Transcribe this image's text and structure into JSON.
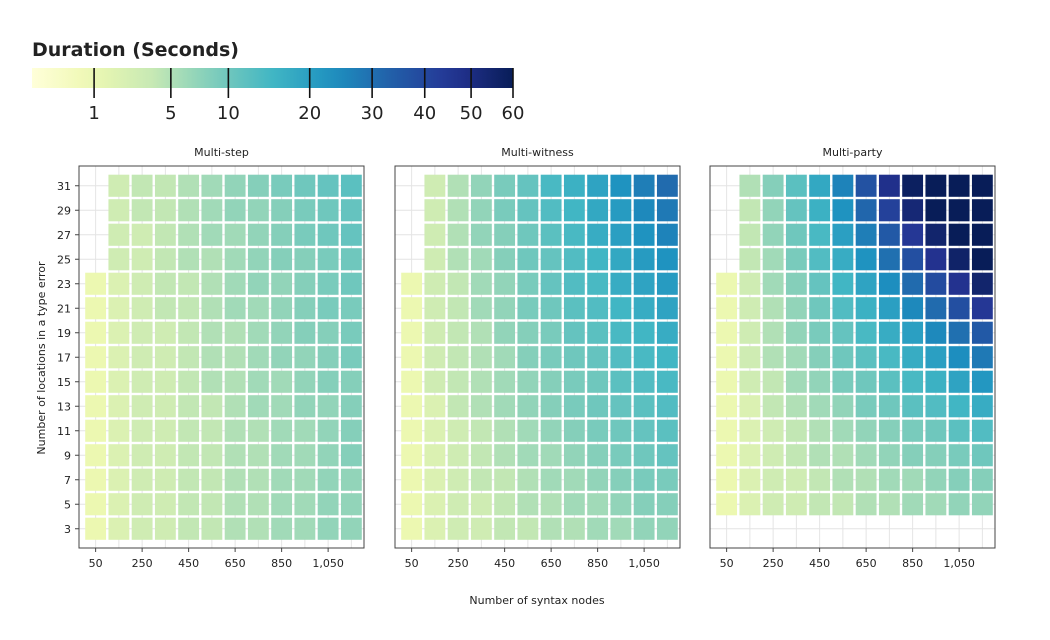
{
  "chart_data": {
    "type": "heatmap",
    "legend": {
      "title": "Duration (Seconds)",
      "ticks": [
        1,
        5,
        10,
        20,
        30,
        40,
        50,
        60
      ],
      "tick_labels": [
        "1",
        "5",
        "10",
        "20",
        "30",
        "40",
        "50",
        "60"
      ],
      "range": [
        0,
        60
      ],
      "palette": [
        "#ffffd9",
        "#edf8b1",
        "#c7e9b4",
        "#7fcdbb",
        "#41b6c4",
        "#1d91c0",
        "#225ea8",
        "#253494",
        "#081d58"
      ],
      "placement": "top-left"
    },
    "xlabel": "Number of syntax nodes",
    "ylabel": "Number of locations in a type error",
    "x_values": [
      50,
      150,
      250,
      350,
      450,
      550,
      650,
      750,
      850,
      950,
      1050,
      1150
    ],
    "x_ticks": [
      50,
      250,
      450,
      650,
      850,
      1050
    ],
    "x_tick_labels": [
      "50",
      "250",
      "450",
      "650",
      "850",
      "1,050"
    ],
    "y_values": [
      3,
      5,
      7,
      9,
      11,
      13,
      15,
      17,
      19,
      21,
      23,
      25,
      27,
      29,
      31
    ],
    "y_ticks": [
      3,
      5,
      7,
      9,
      11,
      13,
      15,
      17,
      19,
      21,
      23,
      25,
      27,
      29,
      31
    ],
    "y_tick_labels": [
      "3",
      "5",
      "7",
      "9",
      "11",
      "13",
      "15",
      "17",
      "19",
      "21",
      "23",
      "25",
      "27",
      "29",
      "31"
    ],
    "grid": true,
    "facets": [
      {
        "title": "Multi-step",
        "rows": [
          {
            "y": 3,
            "values": [
              1,
              2,
              3,
              3,
              4,
              4,
              5,
              5,
              6,
              6,
              7,
              7
            ]
          },
          {
            "y": 5,
            "values": [
              1,
              2,
              3,
              3,
              4,
              4,
              5,
              5,
              6,
              6,
              7,
              7
            ]
          },
          {
            "y": 7,
            "values": [
              1,
              2,
              3,
              3,
              4,
              4,
              5,
              5,
              6,
              6,
              7,
              7
            ]
          },
          {
            "y": 9,
            "values": [
              1,
              2,
              3,
              3,
              4,
              4,
              5,
              5,
              6,
              6,
              7,
              8
            ]
          },
          {
            "y": 11,
            "values": [
              1,
              2,
              3,
              3,
              4,
              4,
              5,
              5,
              6,
              6,
              7,
              8
            ]
          },
          {
            "y": 13,
            "values": [
              1,
              2,
              3,
              3,
              4,
              4,
              5,
              6,
              6,
              7,
              7,
              8
            ]
          },
          {
            "y": 15,
            "values": [
              1,
              2,
              3,
              3,
              4,
              5,
              5,
              6,
              6,
              7,
              8,
              8
            ]
          },
          {
            "y": 17,
            "values": [
              1,
              2,
              3,
              3,
              4,
              5,
              5,
              6,
              7,
              7,
              8,
              9
            ]
          },
          {
            "y": 19,
            "values": [
              1,
              2,
              3,
              3,
              4,
              5,
              5,
              6,
              7,
              8,
              8,
              9
            ]
          },
          {
            "y": 21,
            "values": [
              1,
              2,
              3,
              4,
              4,
              5,
              6,
              6,
              7,
              8,
              9,
              9
            ]
          },
          {
            "y": 23,
            "values": [
              1,
              2,
              3,
              4,
              4,
              5,
              6,
              7,
              7,
              8,
              9,
              10
            ]
          },
          {
            "y": 25,
            "values": [
              null,
              3,
              3,
              4,
              5,
              5,
              6,
              7,
              8,
              8,
              9,
              10
            ]
          },
          {
            "y": 27,
            "values": [
              null,
              3,
              3,
              4,
              5,
              6,
              6,
              7,
              8,
              9,
              10,
              11
            ]
          },
          {
            "y": 29,
            "values": [
              null,
              3,
              4,
              4,
              5,
              6,
              7,
              7,
              8,
              9,
              10,
              11
            ]
          },
          {
            "y": 31,
            "values": [
              null,
              3,
              4,
              4,
              5,
              6,
              7,
              8,
              9,
              10,
              11,
              12
            ]
          }
        ]
      },
      {
        "title": "Multi-witness",
        "rows": [
          {
            "y": 3,
            "values": [
              1,
              2,
              3,
              3,
              4,
              4,
              5,
              5,
              6,
              6,
              7,
              7
            ]
          },
          {
            "y": 5,
            "values": [
              1,
              2,
              3,
              3,
              4,
              5,
              5,
              6,
              6,
              7,
              8,
              8
            ]
          },
          {
            "y": 7,
            "values": [
              1,
              2,
              3,
              4,
              4,
              5,
              6,
              6,
              7,
              8,
              9,
              9
            ]
          },
          {
            "y": 9,
            "values": [
              1,
              2,
              3,
              4,
              5,
              6,
              6,
              7,
              8,
              9,
              10,
              11
            ]
          },
          {
            "y": 11,
            "values": [
              1,
              2,
              3,
              4,
              5,
              6,
              7,
              8,
              9,
              10,
              11,
              12
            ]
          },
          {
            "y": 13,
            "values": [
              1,
              2,
              4,
              5,
              6,
              7,
              8,
              9,
              10,
              11,
              12,
              13
            ]
          },
          {
            "y": 15,
            "values": [
              1,
              3,
              4,
              5,
              6,
              7,
              8,
              9,
              10,
              12,
              13,
              14
            ]
          },
          {
            "y": 17,
            "values": [
              1,
              3,
              4,
              5,
              6,
              8,
              9,
              10,
              11,
              13,
              14,
              15
            ]
          },
          {
            "y": 19,
            "values": [
              1,
              3,
              4,
              5,
              7,
              8,
              9,
              11,
              12,
              14,
              15,
              17
            ]
          },
          {
            "y": 21,
            "values": [
              1,
              3,
              4,
              6,
              7,
              9,
              10,
              12,
              13,
              15,
              17,
              19
            ]
          },
          {
            "y": 23,
            "values": [
              1,
              3,
              4,
              6,
              7,
              9,
              11,
              13,
              14,
              17,
              19,
              21
            ]
          },
          {
            "y": 25,
            "values": [
              null,
              3,
              5,
              6,
              8,
              10,
              11,
              13,
              15,
              18,
              21,
              23
            ]
          },
          {
            "y": 27,
            "values": [
              null,
              3,
              5,
              7,
              8,
              10,
              12,
              14,
              17,
              20,
              23,
              26
            ]
          },
          {
            "y": 29,
            "values": [
              null,
              3,
              5,
              7,
              9,
              11,
              13,
              15,
              18,
              21,
              25,
              28
            ]
          },
          {
            "y": 31,
            "values": [
              null,
              3,
              5,
              7,
              9,
              11,
              14,
              16,
              19,
              23,
              27,
              31
            ]
          }
        ]
      },
      {
        "title": "Multi-party",
        "rows": [
          {
            "y": 3,
            "values": [
              null,
              null,
              null,
              null,
              null,
              null,
              null,
              null,
              null,
              null,
              null,
              null
            ]
          },
          {
            "y": 5,
            "values": [
              1,
              2,
              3,
              3,
              4,
              4,
              5,
              5,
              6,
              6,
              7,
              7
            ]
          },
          {
            "y": 7,
            "values": [
              1,
              2,
              3,
              3,
              4,
              5,
              5,
              6,
              6,
              7,
              8,
              8
            ]
          },
          {
            "y": 9,
            "values": [
              1,
              2,
              3,
              4,
              5,
              5,
              6,
              7,
              8,
              8,
              9,
              10
            ]
          },
          {
            "y": 11,
            "values": [
              1,
              2,
              3,
              4,
              5,
              6,
              7,
              8,
              9,
              10,
              12,
              13
            ]
          },
          {
            "y": 13,
            "values": [
              1,
              2,
              4,
              5,
              6,
              7,
              9,
              10,
              12,
              13,
              15,
              17
            ]
          },
          {
            "y": 15,
            "values": [
              1,
              3,
              4,
              6,
              7,
              9,
              10,
              12,
              14,
              16,
              19,
              22
            ]
          },
          {
            "y": 17,
            "values": [
              1,
              3,
              5,
              6,
              8,
              10,
              12,
              14,
              17,
              20,
              24,
              28
            ]
          },
          {
            "y": 19,
            "values": [
              1,
              3,
              5,
              7,
              9,
              11,
              14,
              17,
              20,
              25,
              30,
              35
            ]
          },
          {
            "y": 21,
            "values": [
              1,
              3,
              5,
              7,
              10,
              13,
              16,
              20,
              25,
              31,
              38,
              45
            ]
          },
          {
            "y": 23,
            "values": [
              1,
              3,
              6,
              8,
              11,
              15,
              19,
              24,
              31,
              39,
              47,
              55
            ]
          },
          {
            "y": 25,
            "values": [
              null,
              4,
              6,
              9,
              13,
              17,
              23,
              30,
              38,
              47,
              56,
              60
            ]
          },
          {
            "y": 27,
            "values": [
              null,
              4,
              7,
              10,
              14,
              20,
              27,
              35,
              45,
              55,
              60,
              60
            ]
          },
          {
            "y": 29,
            "values": [
              null,
              4,
              7,
              11,
              16,
              23,
              32,
              42,
              53,
              60,
              60,
              60
            ]
          },
          {
            "y": 31,
            "values": [
              null,
              5,
              8,
              12,
              18,
              26,
              37,
              48,
              58,
              60,
              60,
              60
            ]
          }
        ]
      }
    ]
  }
}
